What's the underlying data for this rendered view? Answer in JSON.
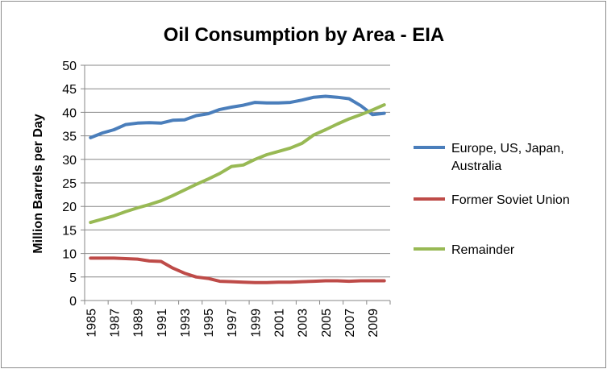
{
  "chart_data": {
    "type": "line",
    "title": "Oil Consumption by Area - EIA",
    "xlabel": "",
    "ylabel": "Million Barrels per Day",
    "ylim": [
      0,
      50
    ],
    "yticks": [
      0,
      5,
      10,
      15,
      20,
      25,
      30,
      35,
      40,
      45,
      50
    ],
    "xticks": [
      "1985",
      "1987",
      "1989",
      "1991",
      "1993",
      "1995",
      "1997",
      "1999",
      "2001",
      "2003",
      "2005",
      "2007",
      "2009"
    ],
    "grid": true,
    "legend": "right",
    "x": [
      1985,
      1986,
      1987,
      1988,
      1989,
      1990,
      1991,
      1992,
      1993,
      1994,
      1995,
      1996,
      1997,
      1998,
      1999,
      2000,
      2001,
      2002,
      2003,
      2004,
      2005,
      2006,
      2007,
      2008,
      2009,
      2010
    ],
    "series": [
      {
        "name": "Europe, US, Japan, Australia",
        "color": "#4a7ebb",
        "values": [
          34.6,
          35.6,
          36.3,
          37.4,
          37.7,
          37.8,
          37.7,
          38.3,
          38.4,
          39.3,
          39.7,
          40.6,
          41.1,
          41.5,
          42.1,
          42.0,
          42.0,
          42.1,
          42.6,
          43.2,
          43.4,
          43.2,
          42.9,
          41.4,
          39.5,
          39.8
        ]
      },
      {
        "name": "Former Soviet Union",
        "color": "#be4b48",
        "values": [
          9.0,
          9.0,
          9.0,
          8.9,
          8.8,
          8.4,
          8.3,
          6.9,
          5.8,
          5.0,
          4.7,
          4.1,
          4.0,
          3.9,
          3.8,
          3.8,
          3.9,
          3.9,
          4.0,
          4.1,
          4.2,
          4.2,
          4.1,
          4.2,
          4.2,
          4.2
        ]
      },
      {
        "name": "Remainder",
        "color": "#98b954",
        "values": [
          16.6,
          17.3,
          18.0,
          18.9,
          19.7,
          20.4,
          21.2,
          22.3,
          23.5,
          24.7,
          25.8,
          27.0,
          28.5,
          28.8,
          30.0,
          31.0,
          31.7,
          32.4,
          33.4,
          35.2,
          36.3,
          37.5,
          38.6,
          39.5,
          40.5,
          41.6
        ]
      }
    ]
  }
}
